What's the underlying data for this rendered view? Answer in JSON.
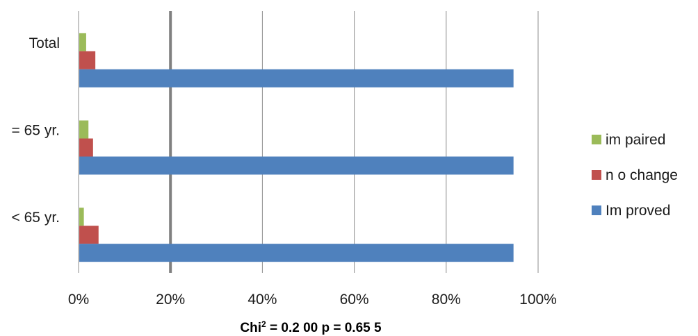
{
  "chart_data": {
    "type": "bar",
    "orientation": "horizontal",
    "categories": [
      "Total",
      "= 65 yr.",
      "< 65 yr."
    ],
    "series": [
      {
        "name": "im paired",
        "color": "#9BBB59",
        "values": [
          1.5,
          2.0,
          1.0
        ]
      },
      {
        "name": "n o change",
        "color": "#C0504D",
        "values": [
          3.5,
          3.0,
          4.2
        ]
      },
      {
        "name": "Im proved",
        "color": "#4F81BD",
        "values": [
          94.5,
          94.5,
          94.5
        ]
      }
    ],
    "xlim": [
      0,
      100
    ],
    "x_ticks": [
      "0%",
      "20%",
      "40%",
      "60%",
      "80%",
      "100%"
    ],
    "x_tick_values": [
      0,
      20,
      40,
      60,
      80,
      100
    ],
    "grid": true,
    "legend_position": "right",
    "legend_order": [
      "im paired",
      "n o change",
      "Im proved"
    ],
    "footnote": {
      "prefix": "Chi",
      "superscript": "2",
      "suffix": " = 0.2 00 p = 0.65 5"
    }
  }
}
